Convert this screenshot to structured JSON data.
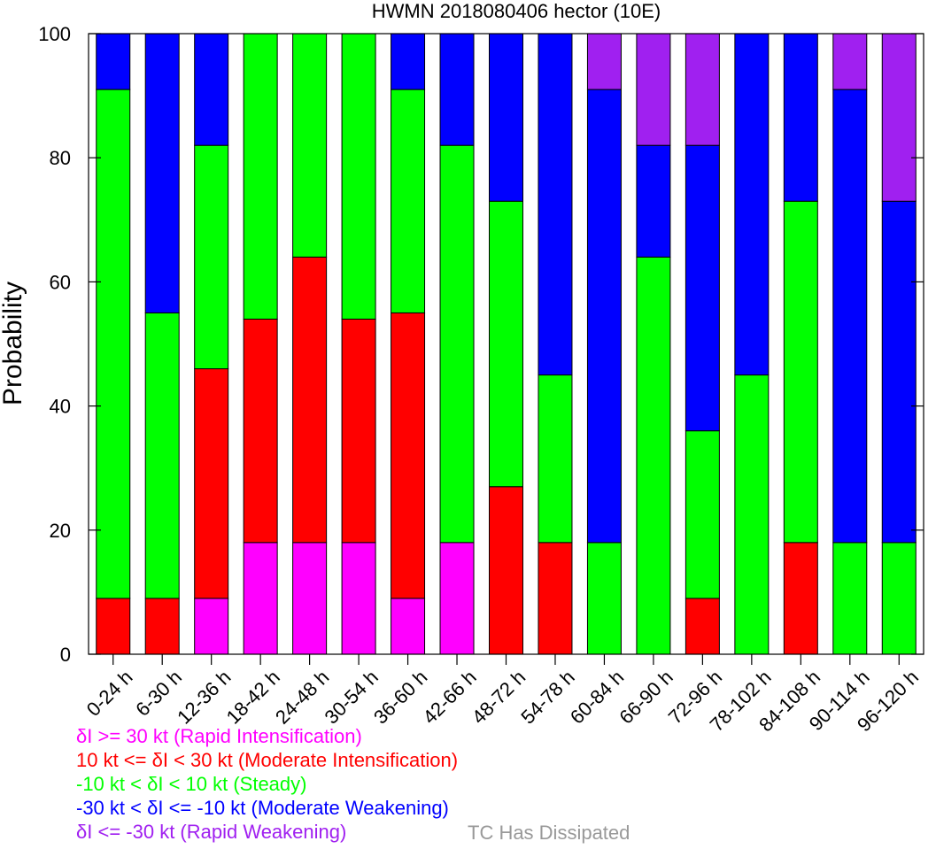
{
  "chart_data": {
    "type": "bar",
    "stacked": true,
    "title": "HWMN 2018080406 hector (10E)",
    "xlabel": "",
    "ylabel": "Probability",
    "ylim": [
      0,
      100
    ],
    "yticks": [
      0,
      20,
      40,
      60,
      80,
      100
    ],
    "grid": false,
    "categories": [
      "0-24 h",
      "6-30 h",
      "12-36 h",
      "18-42 h",
      "24-48 h",
      "30-54 h",
      "36-60 h",
      "42-66 h",
      "48-72 h",
      "54-78 h",
      "60-84 h",
      "66-90 h",
      "72-96 h",
      "78-102 h",
      "84-108 h",
      "90-114 h",
      "96-120 h"
    ],
    "series": [
      {
        "name": "δI >= 30 kt (Rapid Intensification)",
        "color": "#ff00ff",
        "values": [
          0,
          0,
          9,
          18,
          18,
          18,
          9,
          18,
          0,
          0,
          0,
          0,
          0,
          0,
          0,
          0,
          0
        ]
      },
      {
        "name": "10 kt <= δI < 30 kt (Moderate Intensification)",
        "color": "#ff0000",
        "values": [
          9,
          9,
          37,
          36,
          46,
          36,
          46,
          0,
          27,
          18,
          0,
          0,
          9,
          0,
          18,
          0,
          0
        ]
      },
      {
        "name": "-10 kt < δI < 10 kt (Steady)",
        "color": "#00ff00",
        "values": [
          82,
          46,
          36,
          46,
          36,
          46,
          36,
          64,
          46,
          27,
          18,
          64,
          27,
          45,
          55,
          18,
          18
        ]
      },
      {
        "name": "-30 kt < δI <= -10 kt (Moderate Weakening)",
        "color": "#0000ff",
        "values": [
          9,
          45,
          18,
          0,
          0,
          0,
          9,
          18,
          27,
          55,
          73,
          18,
          46,
          55,
          27,
          73,
          55
        ]
      },
      {
        "name": "δI <= -30 kt (Rapid Weakening)",
        "color": "#a020f0",
        "values": [
          0,
          0,
          0,
          0,
          0,
          0,
          0,
          0,
          0,
          0,
          9,
          18,
          18,
          0,
          0,
          9,
          27
        ]
      }
    ],
    "extra_legend": {
      "label": "TC Has Dissipated",
      "color": "#999999"
    },
    "legend_position": "bottom-left"
  }
}
